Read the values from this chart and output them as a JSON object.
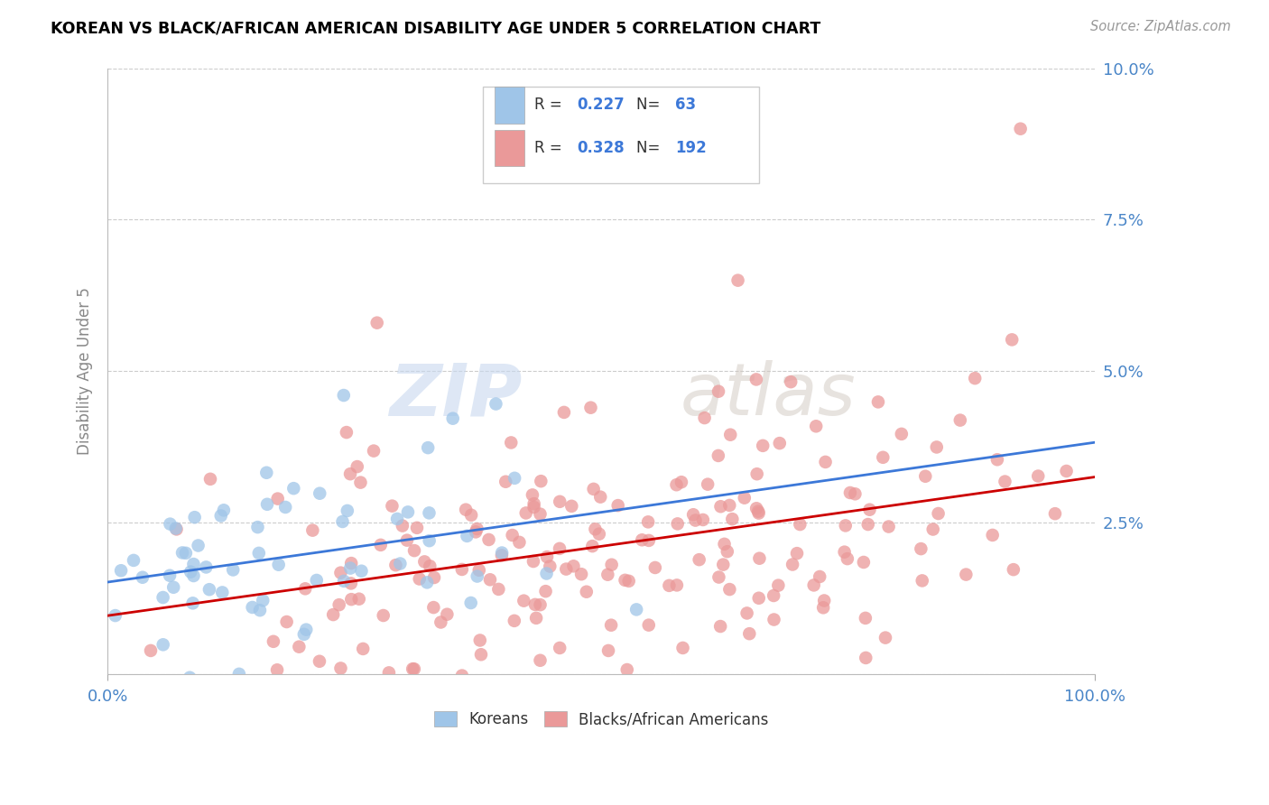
{
  "title": "KOREAN VS BLACK/AFRICAN AMERICAN DISABILITY AGE UNDER 5 CORRELATION CHART",
  "source": "Source: ZipAtlas.com",
  "ylabel": "Disability Age Under 5",
  "xlim": [
    0,
    1.0
  ],
  "ylim": [
    0,
    0.1
  ],
  "korean_R": 0.227,
  "korean_N": 63,
  "black_R": 0.328,
  "black_N": 192,
  "korean_color": "#9fc5e8",
  "black_color": "#ea9999",
  "korean_line_color": "#3c78d8",
  "black_line_color": "#cc0000",
  "watermark_zip": "ZIP",
  "watermark_atlas": "atlas",
  "background_color": "#ffffff",
  "grid_color": "#cccccc",
  "title_color": "#000000",
  "axis_label_color": "#888888",
  "tick_label_color": "#4a86c8",
  "legend_korean_label": "Koreans",
  "legend_black_label": "Blacks/African Americans"
}
